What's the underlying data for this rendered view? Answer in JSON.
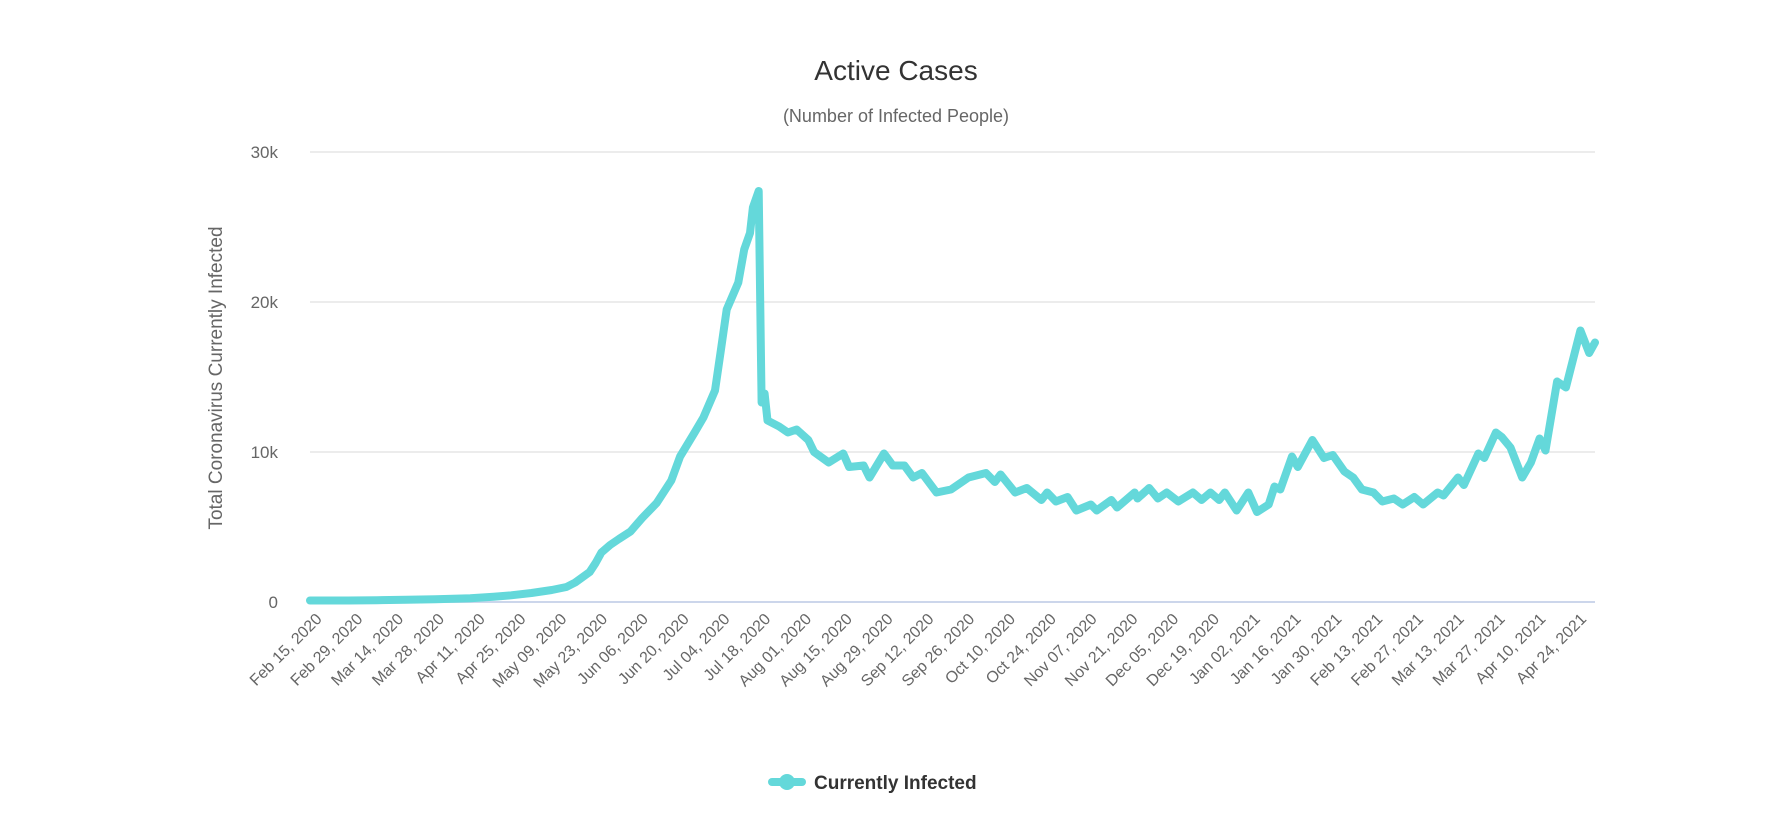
{
  "chart_data": {
    "type": "line",
    "title": "Active Cases",
    "subtitle": "(Number of Infected People)",
    "xlabel": "",
    "ylabel": "Total Coronavirus Currently Infected",
    "ylim": [
      0,
      30000
    ],
    "xlim": [
      "2020-02-12",
      "2021-04-28"
    ],
    "grid": true,
    "y_ticks": [
      {
        "value": 0,
        "label": "0"
      },
      {
        "value": 10000,
        "label": "10k"
      },
      {
        "value": 20000,
        "label": "20k"
      },
      {
        "value": 30000,
        "label": "30k"
      }
    ],
    "x_ticks": [
      {
        "date": "2020-02-15",
        "label": "Feb 15, 2020"
      },
      {
        "date": "2020-02-29",
        "label": "Feb 29, 2020"
      },
      {
        "date": "2020-03-14",
        "label": "Mar 14, 2020"
      },
      {
        "date": "2020-03-28",
        "label": "Mar 28, 2020"
      },
      {
        "date": "2020-04-11",
        "label": "Apr 11, 2020"
      },
      {
        "date": "2020-04-25",
        "label": "Apr 25, 2020"
      },
      {
        "date": "2020-05-09",
        "label": "May 09, 2020"
      },
      {
        "date": "2020-05-23",
        "label": "May 23, 2020"
      },
      {
        "date": "2020-06-06",
        "label": "Jun 06, 2020"
      },
      {
        "date": "2020-06-20",
        "label": "Jun 20, 2020"
      },
      {
        "date": "2020-07-04",
        "label": "Jul 04, 2020"
      },
      {
        "date": "2020-07-18",
        "label": "Jul 18, 2020"
      },
      {
        "date": "2020-08-01",
        "label": "Aug 01, 2020"
      },
      {
        "date": "2020-08-15",
        "label": "Aug 15, 2020"
      },
      {
        "date": "2020-08-29",
        "label": "Aug 29, 2020"
      },
      {
        "date": "2020-09-12",
        "label": "Sep 12, 2020"
      },
      {
        "date": "2020-09-26",
        "label": "Sep 26, 2020"
      },
      {
        "date": "2020-10-10",
        "label": "Oct 10, 2020"
      },
      {
        "date": "2020-10-24",
        "label": "Oct 24, 2020"
      },
      {
        "date": "2020-11-07",
        "label": "Nov 07, 2020"
      },
      {
        "date": "2020-11-21",
        "label": "Nov 21, 2020"
      },
      {
        "date": "2020-12-05",
        "label": "Dec 05, 2020"
      },
      {
        "date": "2020-12-19",
        "label": "Dec 19, 2020"
      },
      {
        "date": "2021-01-02",
        "label": "Jan 02, 2021"
      },
      {
        "date": "2021-01-16",
        "label": "Jan 16, 2021"
      },
      {
        "date": "2021-01-30",
        "label": "Jan 30, 2021"
      },
      {
        "date": "2021-02-13",
        "label": "Feb 13, 2021"
      },
      {
        "date": "2021-02-27",
        "label": "Feb 27, 2021"
      },
      {
        "date": "2021-03-13",
        "label": "Mar 13, 2021"
      },
      {
        "date": "2021-03-27",
        "label": "Mar 27, 2021"
      },
      {
        "date": "2021-04-10",
        "label": "Apr 10, 2021"
      },
      {
        "date": "2021-04-24",
        "label": "Apr 24, 2021"
      }
    ],
    "legend": {
      "position": "bottom-center"
    },
    "series": [
      {
        "name": "Currently Infected",
        "color": "#64d8da",
        "points": [
          [
            "2020-02-12",
            100
          ],
          [
            "2020-02-25",
            100
          ],
          [
            "2020-03-06",
            120
          ],
          [
            "2020-03-16",
            150
          ],
          [
            "2020-03-26",
            180
          ],
          [
            "2020-04-07",
            250
          ],
          [
            "2020-04-15",
            350
          ],
          [
            "2020-04-21",
            450
          ],
          [
            "2020-04-28",
            600
          ],
          [
            "2020-05-05",
            800
          ],
          [
            "2020-05-10",
            1000
          ],
          [
            "2020-05-13",
            1300
          ],
          [
            "2020-05-18",
            2000
          ],
          [
            "2020-05-20",
            2600
          ],
          [
            "2020-05-22",
            3300
          ],
          [
            "2020-05-25",
            3800
          ],
          [
            "2020-05-28",
            4200
          ],
          [
            "2020-06-01",
            4700
          ],
          [
            "2020-06-05",
            5600
          ],
          [
            "2020-06-10",
            6600
          ],
          [
            "2020-06-15",
            8100
          ],
          [
            "2020-06-18",
            9700
          ],
          [
            "2020-06-23",
            11300
          ],
          [
            "2020-06-26",
            12300
          ],
          [
            "2020-06-30",
            14100
          ],
          [
            "2020-07-02",
            16800
          ],
          [
            "2020-07-04",
            19500
          ],
          [
            "2020-07-08",
            21300
          ],
          [
            "2020-07-10",
            23500
          ],
          [
            "2020-07-12",
            24600
          ],
          [
            "2020-07-13",
            26300
          ],
          [
            "2020-07-15",
            27400
          ],
          [
            "2020-07-16",
            13300
          ],
          [
            "2020-07-17",
            13900
          ],
          [
            "2020-07-18",
            12100
          ],
          [
            "2020-07-22",
            11700
          ],
          [
            "2020-07-25",
            11300
          ],
          [
            "2020-07-28",
            11500
          ],
          [
            "2020-08-01",
            10800
          ],
          [
            "2020-08-03",
            10000
          ],
          [
            "2020-08-08",
            9300
          ],
          [
            "2020-08-13",
            9900
          ],
          [
            "2020-08-15",
            9000
          ],
          [
            "2020-08-20",
            9100
          ],
          [
            "2020-08-22",
            8300
          ],
          [
            "2020-08-27",
            9900
          ],
          [
            "2020-08-30",
            9100
          ],
          [
            "2020-09-03",
            9100
          ],
          [
            "2020-09-06",
            8300
          ],
          [
            "2020-09-09",
            8600
          ],
          [
            "2020-09-14",
            7300
          ],
          [
            "2020-09-19",
            7500
          ],
          [
            "2020-09-25",
            8300
          ],
          [
            "2020-10-01",
            8600
          ],
          [
            "2020-10-04",
            8000
          ],
          [
            "2020-10-06",
            8500
          ],
          [
            "2020-10-11",
            7300
          ],
          [
            "2020-10-15",
            7600
          ],
          [
            "2020-10-20",
            6800
          ],
          [
            "2020-10-22",
            7300
          ],
          [
            "2020-10-25",
            6700
          ],
          [
            "2020-10-29",
            7000
          ],
          [
            "2020-11-01",
            6100
          ],
          [
            "2020-11-06",
            6500
          ],
          [
            "2020-11-08",
            6100
          ],
          [
            "2020-11-13",
            6800
          ],
          [
            "2020-11-15",
            6300
          ],
          [
            "2020-11-21",
            7300
          ],
          [
            "2020-11-22",
            6900
          ],
          [
            "2020-11-26",
            7600
          ],
          [
            "2020-11-29",
            6900
          ],
          [
            "2020-12-02",
            7300
          ],
          [
            "2020-12-06",
            6700
          ],
          [
            "2020-12-11",
            7300
          ],
          [
            "2020-12-14",
            6800
          ],
          [
            "2020-12-17",
            7300
          ],
          [
            "2020-12-20",
            6800
          ],
          [
            "2020-12-22",
            7300
          ],
          [
            "2020-12-26",
            6100
          ],
          [
            "2020-12-30",
            7300
          ],
          [
            "2021-01-02",
            6000
          ],
          [
            "2021-01-06",
            6500
          ],
          [
            "2021-01-08",
            7700
          ],
          [
            "2021-01-10",
            7500
          ],
          [
            "2021-01-14",
            9700
          ],
          [
            "2021-01-16",
            9000
          ],
          [
            "2021-01-21",
            10800
          ],
          [
            "2021-01-25",
            9600
          ],
          [
            "2021-01-28",
            9800
          ],
          [
            "2021-02-01",
            8700
          ],
          [
            "2021-02-04",
            8300
          ],
          [
            "2021-02-07",
            7500
          ],
          [
            "2021-02-11",
            7300
          ],
          [
            "2021-02-14",
            6700
          ],
          [
            "2021-02-18",
            6900
          ],
          [
            "2021-02-21",
            6500
          ],
          [
            "2021-02-25",
            7000
          ],
          [
            "2021-02-28",
            6500
          ],
          [
            "2021-03-05",
            7300
          ],
          [
            "2021-03-07",
            7100
          ],
          [
            "2021-03-12",
            8300
          ],
          [
            "2021-03-14",
            7800
          ],
          [
            "2021-03-19",
            9900
          ],
          [
            "2021-03-21",
            9600
          ],
          [
            "2021-03-25",
            11300
          ],
          [
            "2021-03-27",
            11000
          ],
          [
            "2021-03-30",
            10300
          ],
          [
            "2021-04-03",
            8300
          ],
          [
            "2021-04-06",
            9300
          ],
          [
            "2021-04-09",
            10900
          ],
          [
            "2021-04-11",
            10100
          ],
          [
            "2021-04-15",
            14700
          ],
          [
            "2021-04-18",
            14300
          ],
          [
            "2021-04-23",
            18100
          ],
          [
            "2021-04-26",
            16600
          ],
          [
            "2021-04-28",
            17300
          ]
        ]
      }
    ]
  }
}
